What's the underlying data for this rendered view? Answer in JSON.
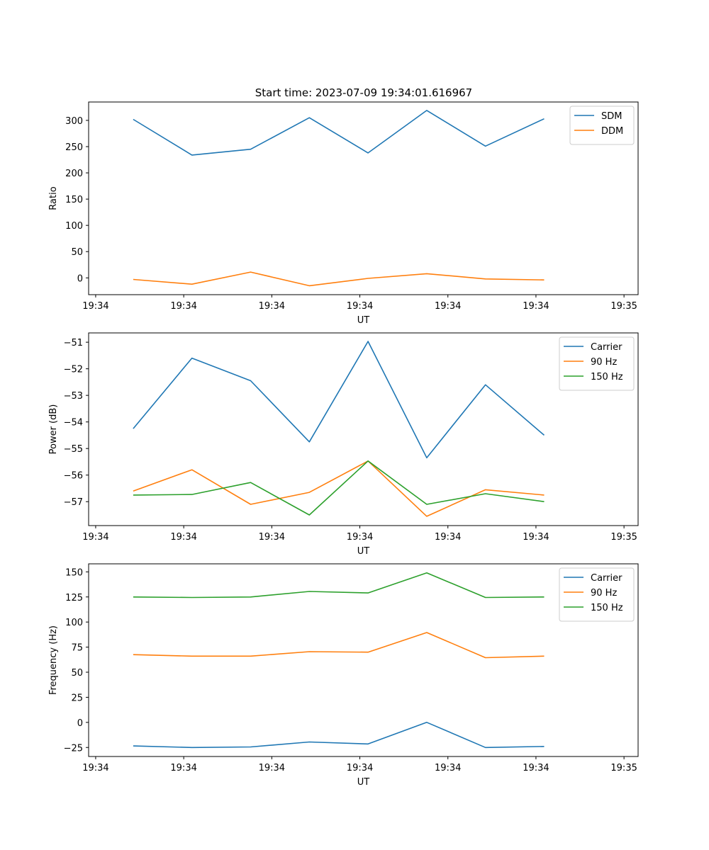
{
  "figure": {
    "title": "Start time: 2023-07-09 19:34:01.616967",
    "colors": {
      "blue": "#1f77b4",
      "orange": "#ff7f0e",
      "green": "#2ca02c"
    }
  },
  "chart_data": [
    {
      "type": "line",
      "title": "Start time: 2023-07-09 19:34:01.616967",
      "xlabel": "UT",
      "ylabel": "Ratio",
      "xticks": [
        "19:34",
        "19:34",
        "19:34",
        "19:34",
        "19:34",
        "19:34",
        "19:34"
      ],
      "xlim_label_right": "19:35",
      "xlim": [
        -0.12,
        9.24
      ],
      "x": [
        0.64,
        1.64,
        2.64,
        3.64,
        4.64,
        5.64,
        6.64,
        7.64
      ],
      "ylim": [
        -32,
        335
      ],
      "yticks": [
        0,
        50,
        100,
        150,
        200,
        250,
        300
      ],
      "grid": false,
      "legend": "top-right",
      "series": [
        {
          "name": "SDM",
          "color": "#1f77b4",
          "values": [
            302,
            234,
            245,
            305,
            238,
            319,
            251,
            303
          ]
        },
        {
          "name": "DDM",
          "color": "#ff7f0e",
          "values": [
            -3,
            -12,
            11,
            -15,
            -1,
            8,
            -2,
            -4
          ]
        }
      ]
    },
    {
      "type": "line",
      "xlabel": "UT",
      "ylabel": "Power (dB)",
      "xticks": [
        "19:34",
        "19:34",
        "19:34",
        "19:34",
        "19:34",
        "19:34",
        "19:34"
      ],
      "xlim_label_right": "19:35",
      "xlim": [
        -0.12,
        9.24
      ],
      "x": [
        0.64,
        1.64,
        2.64,
        3.64,
        4.64,
        5.64,
        6.64,
        7.64
      ],
      "ylim": [
        -57.9,
        -50.65
      ],
      "yticks": [
        -57,
        -56,
        -55,
        -54,
        -53,
        -52,
        -51
      ],
      "grid": false,
      "legend": "top-right",
      "series": [
        {
          "name": "Carrier",
          "color": "#1f77b4",
          "values": [
            -54.25,
            -51.6,
            -52.45,
            -54.75,
            -50.97,
            -55.35,
            -52.6,
            -54.5
          ]
        },
        {
          "name": "90 Hz",
          "color": "#ff7f0e",
          "values": [
            -56.6,
            -55.8,
            -57.1,
            -56.65,
            -55.47,
            -57.55,
            -56.55,
            -56.75
          ]
        },
        {
          "name": "150 Hz",
          "color": "#2ca02c",
          "values": [
            -56.75,
            -56.73,
            -56.28,
            -57.5,
            -55.47,
            -57.1,
            -56.7,
            -57.0
          ]
        }
      ]
    },
    {
      "type": "line",
      "xlabel": "UT",
      "ylabel": "Frequency (Hz)",
      "xticks": [
        "19:34",
        "19:34",
        "19:34",
        "19:34",
        "19:34",
        "19:34",
        "19:34"
      ],
      "xlim_label_right": "19:35",
      "xlim": [
        -0.12,
        9.24
      ],
      "x": [
        0.64,
        1.64,
        2.64,
        3.64,
        4.64,
        5.64,
        6.64,
        7.64
      ],
      "ylim": [
        -34,
        158
      ],
      "yticks": [
        -25,
        0,
        25,
        50,
        75,
        100,
        125,
        150
      ],
      "grid": false,
      "legend": "top-right",
      "series": [
        {
          "name": "Carrier",
          "color": "#1f77b4",
          "values": [
            -23.5,
            -25,
            -24.5,
            -19.5,
            -21.5,
            0,
            -25,
            -24
          ]
        },
        {
          "name": "90 Hz",
          "color": "#ff7f0e",
          "values": [
            67.5,
            66,
            66,
            70.5,
            70,
            89.5,
            64.5,
            66
          ]
        },
        {
          "name": "150 Hz",
          "color": "#2ca02c",
          "values": [
            125,
            124.5,
            125,
            130.5,
            129,
            149,
            124.5,
            125
          ]
        }
      ]
    }
  ]
}
